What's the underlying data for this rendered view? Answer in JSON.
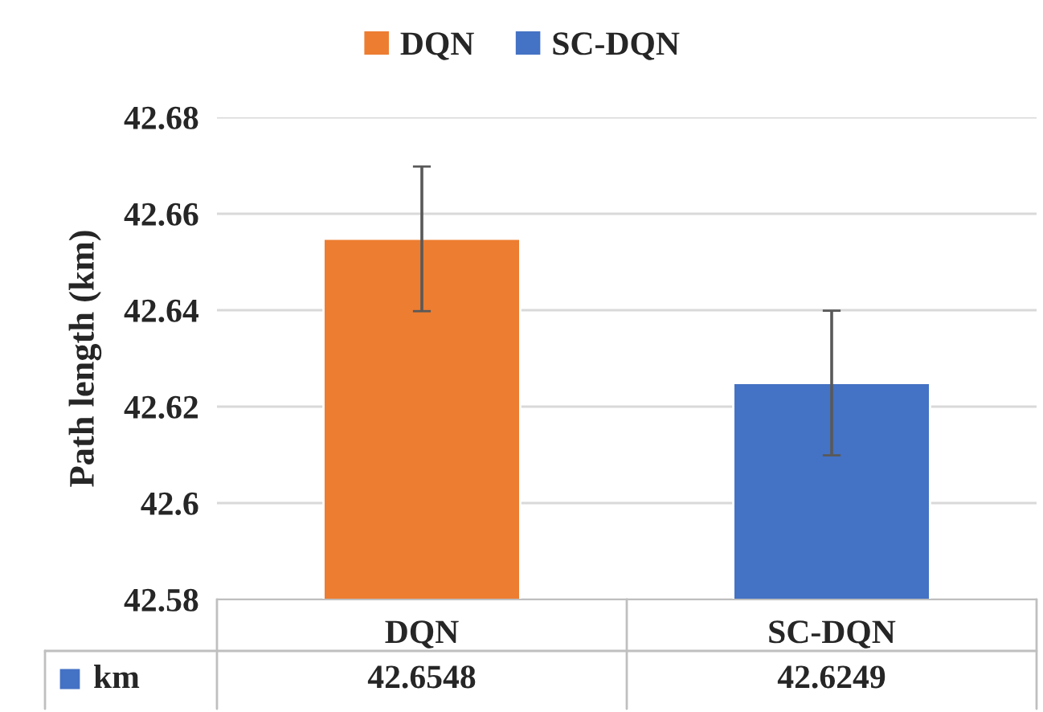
{
  "chart_data": {
    "type": "bar",
    "ylabel": "Path length (km)",
    "categories": [
      "DQN",
      "SC-DQN"
    ],
    "series": [
      {
        "name": "DQN",
        "color": "#ed7d31",
        "values": [
          42.6548,
          null
        ],
        "errors": [
          0.015,
          null
        ]
      },
      {
        "name": "SC-DQN",
        "color": "#4472c4",
        "values": [
          null,
          42.6249
        ],
        "errors": [
          null,
          0.015
        ]
      }
    ],
    "annotations": [
      "km"
    ],
    "ylim": [
      42.58,
      42.68
    ],
    "yticks": [
      42.58,
      42.6,
      42.62,
      42.64,
      42.66,
      42.68
    ],
    "grid": "y",
    "legend": "top",
    "data_labels": true
  }
}
